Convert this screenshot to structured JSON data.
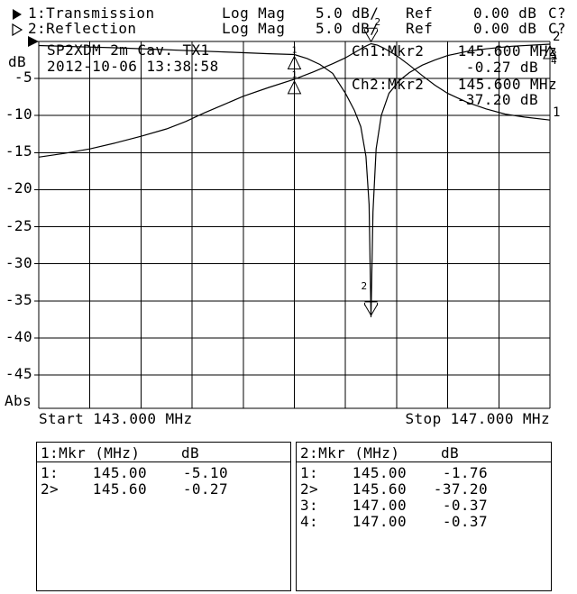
{
  "meta": {
    "background_color": "#ffffff",
    "foreground_color": "#000000"
  },
  "header": {
    "traces": [
      {
        "symbol": "filled-right-triangle",
        "num": "1:",
        "name": "Transmission",
        "format": "Log Mag",
        "scale": "5.0 dB/",
        "ref_label": "Ref",
        "ref_value": "0.00 dB",
        "cal": "C?"
      },
      {
        "symbol": "hollow-right-triangle",
        "num": "2:",
        "name": "Reflection",
        "format": "Log Mag",
        "scale": "5.0 dB/",
        "ref_label": "Ref",
        "ref_value": "0.00 dB",
        "cal": "C?"
      }
    ]
  },
  "plot": {
    "title_line1": "SP2XDM 2m Cav. TX1",
    "title_line2": "2012-10-06 13:38:58",
    "y_axis_label": "dB",
    "y_axis_bottom_label": "Abs",
    "y_ticks": [
      "-5",
      "-10",
      "-15",
      "-20",
      "-25",
      "-30",
      "-35",
      "-40",
      "-45"
    ],
    "start_label": "Start 143.000 MHz",
    "stop_label": "Stop 147.000 MHz",
    "readouts": [
      {
        "ch": "Ch1:Mkr2",
        "freq": "145.600 MHz",
        "value": "-0.27 dB"
      },
      {
        "ch": "Ch2:Mkr2",
        "freq": "145.600 MHz",
        "value": "-37.20 dB"
      }
    ],
    "trace_end_labels": [
      {
        "label": "2",
        "db": -0.37
      },
      {
        "label": "1",
        "db": -10.6
      }
    ]
  },
  "chart_data": {
    "type": "line",
    "title": "SP2XDM 2m Cav. TX1",
    "ylabel": "dB",
    "x_range_mhz": [
      143,
      147
    ],
    "y_range_db": [
      0,
      -49.5
    ],
    "y_tick_step_db": 5,
    "x_divisions": 10,
    "grid": true,
    "series": [
      {
        "name": "Transmission",
        "x": [
          143.0,
          143.2,
          143.4,
          143.6,
          143.8,
          144.0,
          144.15,
          144.3,
          144.45,
          144.6,
          144.8,
          145.0,
          145.15,
          145.3,
          145.4,
          145.5,
          145.55,
          145.6,
          145.65,
          145.7,
          145.8,
          145.9,
          146.0,
          146.1,
          146.2,
          146.35,
          146.5,
          146.65,
          146.8,
          147.0
        ],
        "y": [
          -15.6,
          -15.1,
          -14.5,
          -13.7,
          -12.8,
          -11.8,
          -10.8,
          -9.6,
          -8.5,
          -7.4,
          -6.2,
          -5.1,
          -4.1,
          -3.0,
          -2.2,
          -1.2,
          -0.7,
          -0.3,
          -0.5,
          -0.9,
          -1.9,
          -3.2,
          -4.6,
          -5.9,
          -7.0,
          -8.2,
          -9.1,
          -9.8,
          -10.2,
          -10.6
        ]
      },
      {
        "name": "Reflection",
        "x": [
          143.0,
          143.3,
          143.6,
          143.9,
          144.2,
          144.5,
          144.8,
          145.0,
          145.1,
          145.2,
          145.3,
          145.4,
          145.47,
          145.52,
          145.56,
          145.585,
          145.6,
          145.615,
          145.64,
          145.68,
          145.74,
          145.82,
          145.9,
          146.0,
          146.1,
          146.2,
          146.35,
          146.5,
          146.7,
          147.0
        ],
        "y": [
          -0.55,
          -0.7,
          -0.85,
          -1.05,
          -1.25,
          -1.45,
          -1.65,
          -1.76,
          -2.3,
          -3.1,
          -4.3,
          -7.0,
          -9.3,
          -11.5,
          -15.5,
          -22.0,
          -37.2,
          -23.0,
          -14.5,
          -10.0,
          -7.0,
          -5.3,
          -4.2,
          -3.2,
          -2.5,
          -1.9,
          -1.35,
          -1.0,
          -0.65,
          -0.37
        ]
      }
    ],
    "markers": [
      {
        "trace": 2,
        "label": "1",
        "f_mhz": 145.0,
        "db": -1.76,
        "style": "triangle"
      },
      {
        "trace": 1,
        "label": "1",
        "f_mhz": 145.0,
        "db": -5.1,
        "style": "triangle"
      },
      {
        "trace": 1,
        "label": "2",
        "f_mhz": 145.6,
        "db": -0.27,
        "style": "arrow"
      },
      {
        "trace": 2,
        "label": "2",
        "f_mhz": 145.6,
        "db": -37.2,
        "style": "arrow"
      },
      {
        "trace": 2,
        "label": "3",
        "f_mhz": 147.0,
        "db": -0.37,
        "style": "triangle"
      },
      {
        "trace": 2,
        "label": "4",
        "f_mhz": 147.0,
        "db": -0.37,
        "style": "triangle"
      }
    ]
  },
  "marker_tables": [
    {
      "title": "1:Mkr (MHz)",
      "unit": "dB",
      "rows": [
        {
          "n": "1:",
          "freq": "145.00",
          "db": "-5.10"
        },
        {
          "n": "2>",
          "freq": "145.60",
          "db": "-0.27"
        }
      ]
    },
    {
      "title": "2:Mkr (MHz)",
      "unit": "dB",
      "rows": [
        {
          "n": "1:",
          "freq": "145.00",
          "db": "-1.76"
        },
        {
          "n": "2>",
          "freq": "145.60",
          "db": "-37.20"
        },
        {
          "n": "3:",
          "freq": "147.00",
          "db": "-0.37"
        },
        {
          "n": "4:",
          "freq": "147.00",
          "db": "-0.37"
        }
      ]
    }
  ]
}
